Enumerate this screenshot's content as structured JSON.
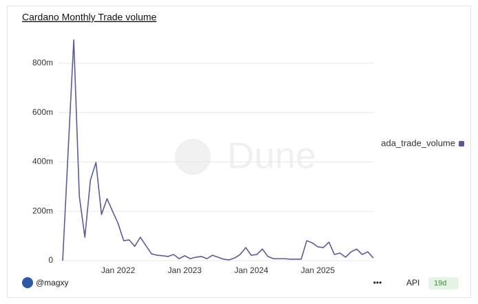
{
  "chart_data": {
    "type": "line",
    "title": "Cardano Monthly Trade volume",
    "watermark": "Dune",
    "categories": [
      null,
      null,
      null,
      null,
      null,
      null,
      null,
      null,
      null,
      null,
      "Jan 2022",
      null,
      null,
      null,
      null,
      null,
      null,
      null,
      null,
      null,
      null,
      null,
      "Jan 2023",
      null,
      null,
      null,
      null,
      null,
      null,
      null,
      null,
      null,
      null,
      null,
      "Jan 2024",
      null,
      null,
      null,
      null,
      null,
      null,
      null,
      null,
      null,
      null,
      null,
      "Jan 2025",
      null,
      null,
      null,
      null,
      null,
      null,
      null,
      null,
      null,
      null
    ],
    "series": [
      {
        "name": "ada_trade_volume",
        "color": "#5b5a96",
        "values": [
          0,
          450,
          894,
          262,
          95,
          326,
          398,
          187,
          251,
          200,
          150,
          81,
          84,
          58,
          95,
          61,
          28,
          22,
          20,
          17,
          25,
          8,
          20,
          8,
          14,
          17,
          8,
          22,
          14,
          6,
          3,
          11,
          25,
          53,
          22,
          25,
          47,
          17,
          8,
          8,
          8,
          6,
          6,
          6,
          81,
          72,
          56,
          53,
          75,
          25,
          31,
          14,
          36,
          47,
          25,
          36,
          11
        ]
      }
    ],
    "ylim": [
      0,
      950
    ],
    "yticks": [
      0,
      {
        "value": 200,
        "label": "200m"
      },
      {
        "value": 400,
        "label": "400m"
      },
      {
        "value": 600,
        "label": "600m"
      },
      {
        "value": 800,
        "label": "800m"
      }
    ],
    "grid": true,
    "legend": "right",
    "footer": {
      "user": "@magxy",
      "menu": "•••",
      "api": "API",
      "age": "19d"
    }
  }
}
